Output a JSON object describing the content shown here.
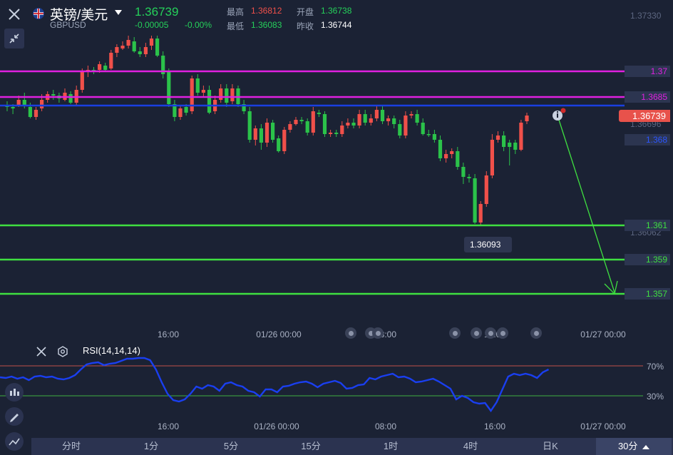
{
  "header": {
    "name": "英镑/美元",
    "code": "GBPUSD",
    "price": "1.36739",
    "change": "-0.00005",
    "change_pct": "-0.00%",
    "high_label": "最高",
    "high_value": "1.36812",
    "open_label": "开盘",
    "open_value": "1.36738",
    "low_label": "最低",
    "low_value": "1.36083",
    "prev_close_label": "昨收",
    "prev_close_value": "1.36744"
  },
  "price_axis": {
    "top_tick": "1.37330",
    "ticks": [
      "1.36696",
      "1.36062"
    ],
    "current_price_tag": "1.36739"
  },
  "levels": [
    {
      "label": "1.37",
      "value": 1.37,
      "color": "#e020e0"
    },
    {
      "label": "1.3685",
      "value": 1.3685,
      "color": "#e020e0"
    },
    {
      "label": "1.368",
      "value": 1.368,
      "color": "#1a3fe0"
    },
    {
      "label": "1.361",
      "value": 1.361,
      "color": "#3fe040"
    },
    {
      "label": "1.359",
      "value": 1.359,
      "color": "#3fe040"
    },
    {
      "label": "1.357",
      "value": 1.357,
      "color": "#3fe040"
    }
  ],
  "low_marker": "1.36093",
  "time_labels": [
    "16:00",
    "01/26 00:00",
    "08:00",
    "16:00",
    "01/27 00:00"
  ],
  "indicator": {
    "name": "RSI(14,14,14)",
    "upper": "70%",
    "lower": "30%"
  },
  "tabs": [
    "分时",
    "1分",
    "5分",
    "15分",
    "1时",
    "4时",
    "日K",
    "30分"
  ],
  "active_tab": "30分",
  "colors": {
    "up": "#f0504a",
    "down": "#2bc24a",
    "rsi_line": "#1a3ff0",
    "rsi_upper": "#c0504a",
    "rsi_lower": "#3fb040",
    "background": "#1b2234"
  },
  "icons": {
    "close": "close-icon",
    "collapse": "collapse-icon",
    "flag": "uk-flag-icon",
    "dropdown": "caret-down-icon",
    "indicator_close": "close-icon",
    "settings": "gear-icon",
    "indicators": "candles-icon",
    "draw": "pencil-icon",
    "line_tool": "line-tool-icon"
  }
}
